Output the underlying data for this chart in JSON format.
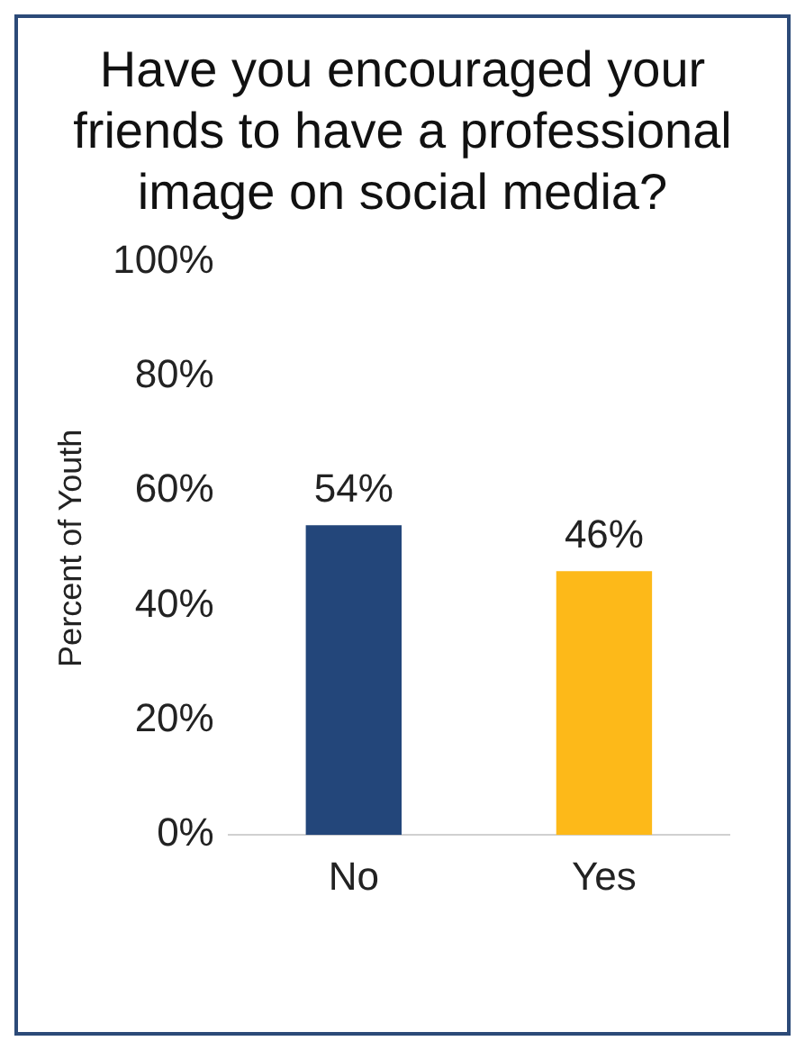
{
  "chart_data": {
    "type": "bar",
    "title": "Have you encouraged your friends to have a professional image on social media?",
    "ylabel": "Percent of Youth",
    "categories": [
      "No",
      "Yes"
    ],
    "values": [
      54,
      46
    ],
    "colors": [
      "#23467a",
      "#fdb919"
    ],
    "value_labels": [
      "54%",
      "46%"
    ],
    "ylim": [
      0,
      100
    ],
    "yticks": [
      {
        "value": 0,
        "label": "0%"
      },
      {
        "value": 20,
        "label": "20%"
      },
      {
        "value": 40,
        "label": "40%"
      },
      {
        "value": 60,
        "label": "60%"
      },
      {
        "value": 80,
        "label": "80%"
      },
      {
        "value": 100,
        "label": "100%"
      }
    ],
    "grid": false,
    "legend": false
  }
}
